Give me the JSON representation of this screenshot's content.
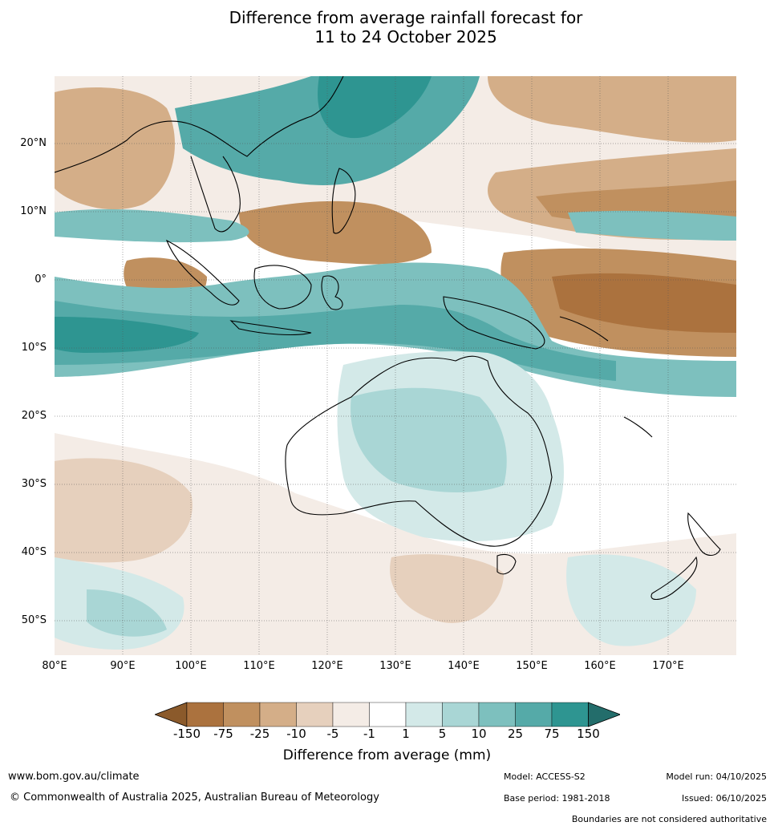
{
  "title_line1": "Difference from average rainfall forecast for",
  "title_line2": "11 to 24 October 2025",
  "lat_labels": [
    "20°N",
    "10°N",
    "0°",
    "10°S",
    "20°S",
    "30°S",
    "40°S",
    "50°S"
  ],
  "lon_labels": [
    "80°E",
    "90°E",
    "100°E",
    "110°E",
    "120°E",
    "130°E",
    "140°E",
    "150°E",
    "160°E",
    "170°E"
  ],
  "colorbar": {
    "title": "Difference from average (mm)",
    "ticks": [
      "-150",
      "-75",
      "-25",
      "-10",
      "-5",
      "-1",
      "1",
      "5",
      "10",
      "25",
      "75",
      "150"
    ],
    "colors": [
      "#8b5a2b",
      "#ab723e",
      "#c0905f",
      "#d4ae88",
      "#e6d0bd",
      "#f4ece6",
      "#ffffff",
      "#d3e9e8",
      "#a9d6d5",
      "#7dc0be",
      "#55aaa8",
      "#2e9591",
      "#236d6b"
    ]
  },
  "footer": {
    "url": "www.bom.gov.au/climate",
    "copyright": "© Commonwealth of Australia 2025, Australian Bureau of Meteorology",
    "model": "Model: ACCESS-S2",
    "model_run": "Model run: 04/10/2025",
    "base_period": "Base period: 1981-2018",
    "issued": "Issued: 06/10/2025",
    "disclaimer": "Boundaries are not considered authoritative"
  }
}
